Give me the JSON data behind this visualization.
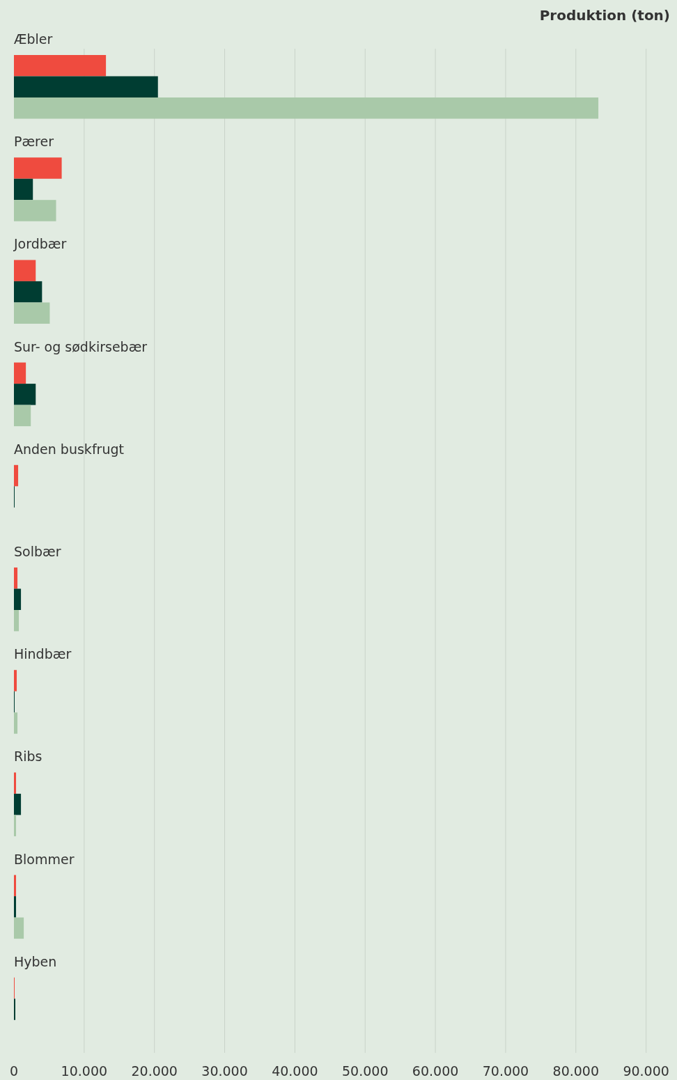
{
  "chart_data": {
    "type": "bar",
    "orientation": "horizontal",
    "title": "Produktion (ton)",
    "categories": [
      "Æbler",
      "Pærer",
      "Jordbær",
      "Sur- og sødkirsebær",
      "Anden buskfrugt",
      "Solbær",
      "Hindbær",
      "Ribs",
      "Blommer",
      "Hyben"
    ],
    "series": [
      {
        "color": "#ef4b3f",
        "values": [
          13100,
          6800,
          3100,
          1700,
          600,
          500,
          400,
          300,
          300,
          100
        ]
      },
      {
        "color": "#003d32",
        "values": [
          20500,
          2700,
          4000,
          3100,
          100,
          1000,
          100,
          1000,
          300,
          200
        ]
      },
      {
        "color": "#a9c9a9",
        "values": [
          83200,
          6000,
          5100,
          2400,
          null,
          700,
          500,
          300,
          1400,
          null
        ]
      }
    ],
    "xlim": [
      0,
      94000
    ],
    "xticks": [
      0,
      {
        "value": 10000,
        "label": "10.000"
      },
      {
        "value": 20000,
        "label": "20.000"
      },
      {
        "value": 30000,
        "label": "30.000"
      },
      {
        "value": 40000,
        "label": "40.000"
      },
      {
        "value": 50000,
        "label": "50.000"
      },
      {
        "value": 60000,
        "label": "60.000"
      },
      {
        "value": 70000,
        "label": "70.000"
      },
      {
        "value": 80000,
        "label": "80.000"
      },
      {
        "value": 90000,
        "label": "90.000"
      }
    ],
    "grid": true
  }
}
